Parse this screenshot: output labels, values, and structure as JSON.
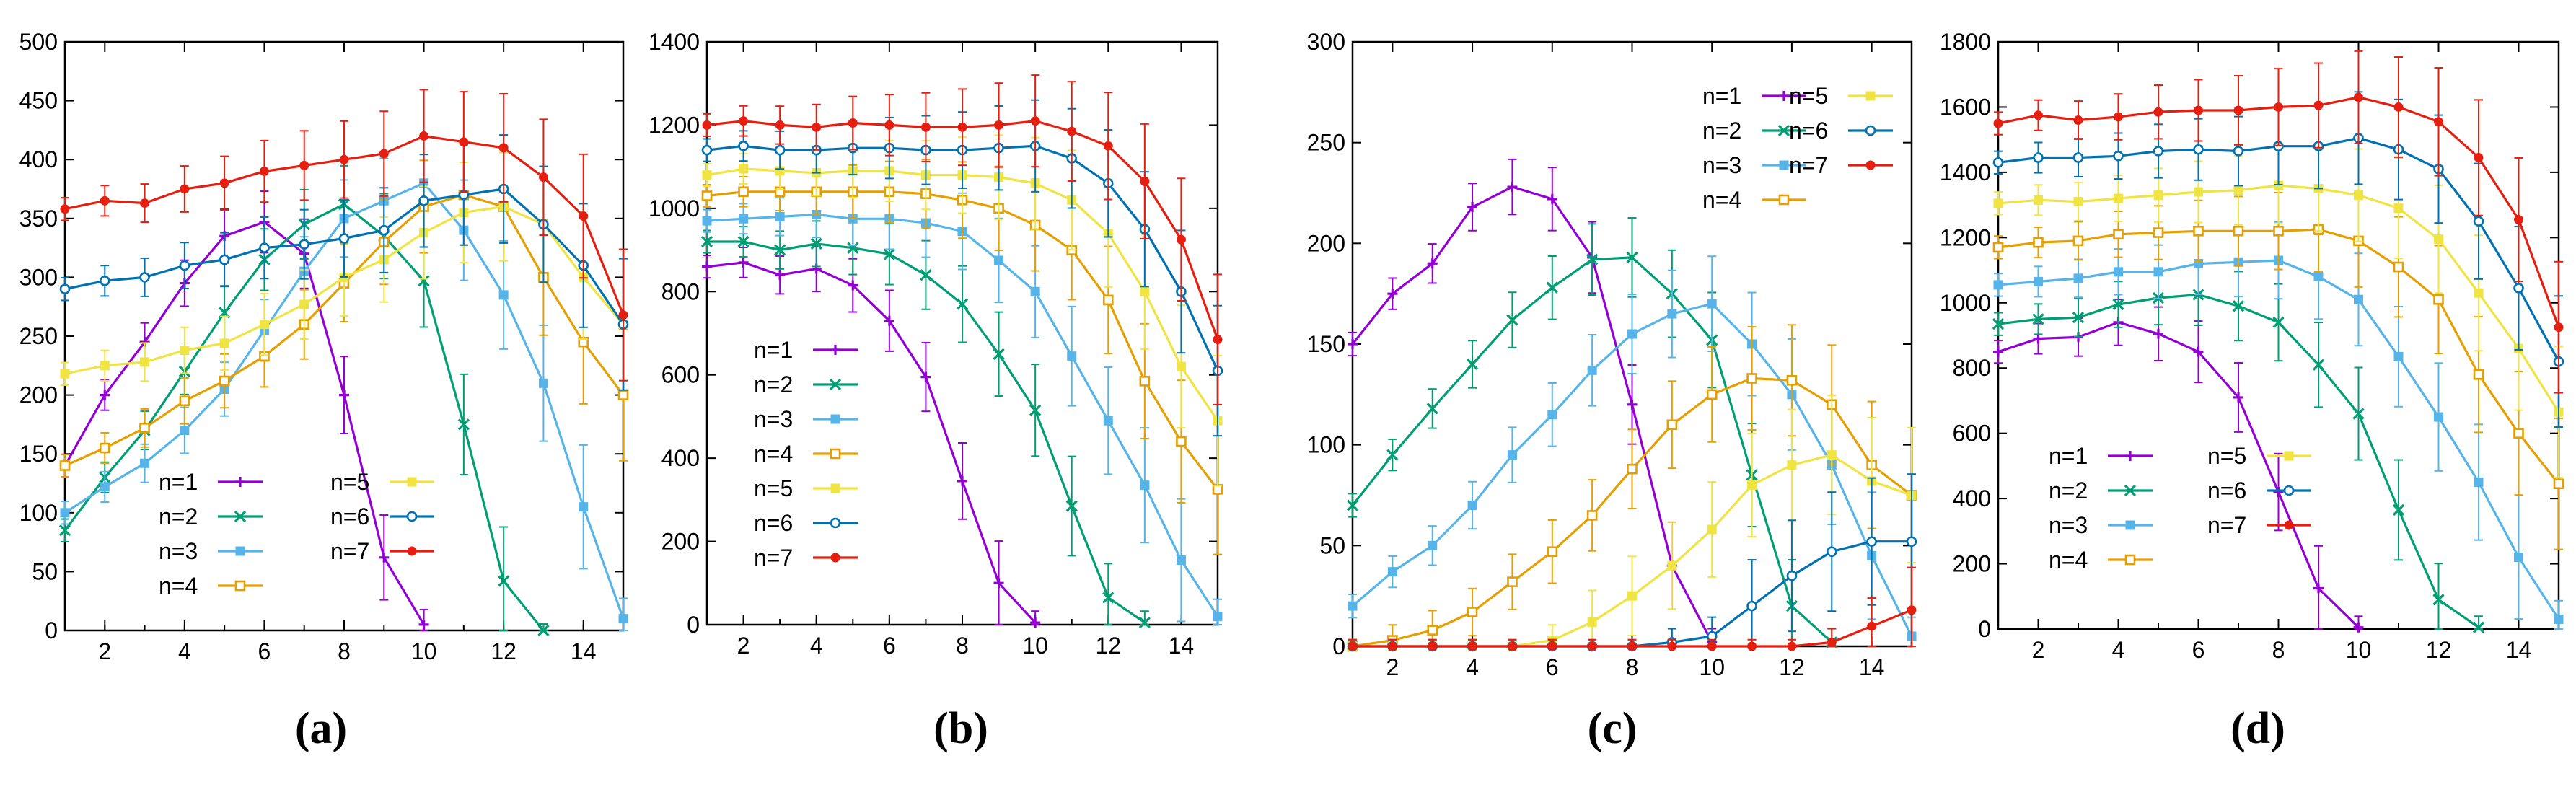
{
  "series_names": [
    "n=1",
    "n=2",
    "n=3",
    "n=4",
    "n=5",
    "n=6",
    "n=7"
  ],
  "colors": {
    "n1": "#9400d3",
    "n2": "#009e73",
    "n3": "#56b4e9",
    "n4": "#e69f00",
    "n5": "#f0e442",
    "n6": "#0072b2",
    "n7": "#e51e10"
  },
  "markers": [
    "plus",
    "cross",
    "square",
    "square-open",
    "square-filled",
    "circle-open",
    "circle-filled"
  ],
  "chart_data": [
    {
      "type": "line",
      "caption": "(a)",
      "x": [
        1,
        2,
        3,
        4,
        5,
        6,
        7,
        8,
        9,
        10,
        11,
        12,
        13,
        14,
        15
      ],
      "xticks": [
        2,
        4,
        6,
        8,
        10,
        12,
        14
      ],
      "xlim": [
        1,
        15
      ],
      "ylim": [
        0,
        500
      ],
      "yticks": [
        0,
        50,
        100,
        150,
        200,
        250,
        300,
        350,
        400,
        450,
        500
      ],
      "legend": "lower-left, two columns (n=1..4 | n=5..7)",
      "series": [
        {
          "name": "n=1",
          "values": [
            140,
            200,
            245,
            295,
            335,
            347,
            320,
            200,
            62,
            5,
            null,
            null,
            null,
            null,
            null
          ]
        },
        {
          "name": "n=2",
          "values": [
            85,
            130,
            170,
            220,
            270,
            315,
            345,
            362,
            335,
            297,
            175,
            42,
            0,
            null,
            null
          ]
        },
        {
          "name": "n=3",
          "values": [
            100,
            122,
            142,
            170,
            205,
            255,
            305,
            350,
            365,
            380,
            340,
            285,
            210,
            105,
            10
          ]
        },
        {
          "name": "n=4",
          "values": [
            140,
            155,
            172,
            195,
            212,
            233,
            260,
            295,
            330,
            360,
            370,
            360,
            300,
            245,
            200
          ]
        },
        {
          "name": "n=5",
          "values": [
            218,
            225,
            228,
            238,
            244,
            260,
            277,
            300,
            315,
            338,
            355,
            360,
            345,
            300,
            260
          ]
        },
        {
          "name": "n=6",
          "values": [
            290,
            297,
            300,
            310,
            315,
            325,
            328,
            333,
            340,
            365,
            370,
            375,
            345,
            310,
            260
          ]
        },
        {
          "name": "n=7",
          "values": [
            358,
            365,
            363,
            375,
            380,
            390,
            395,
            400,
            405,
            420,
            415,
            410,
            385,
            352,
            268
          ]
        }
      ]
    },
    {
      "type": "line",
      "caption": "(b)",
      "x": [
        1,
        2,
        3,
        4,
        5,
        6,
        7,
        8,
        9,
        10,
        11,
        12,
        13,
        14,
        15
      ],
      "xticks": [
        2,
        4,
        6,
        8,
        10,
        12,
        14
      ],
      "xlim": [
        1,
        15
      ],
      "ylim": [
        0,
        1400
      ],
      "yticks": [
        0,
        200,
        400,
        600,
        800,
        1000,
        1200,
        1400
      ],
      "legend": "lower-left, single column",
      "series": [
        {
          "name": "n=1",
          "values": [
            860,
            870,
            840,
            855,
            815,
            730,
            595,
            345,
            100,
            5,
            null,
            null,
            null,
            null,
            null
          ]
        },
        {
          "name": "n=2",
          "values": [
            920,
            920,
            900,
            915,
            905,
            890,
            840,
            770,
            650,
            515,
            285,
            65,
            5,
            null,
            null
          ]
        },
        {
          "name": "n=3",
          "values": [
            970,
            975,
            980,
            985,
            975,
            975,
            965,
            945,
            875,
            800,
            645,
            490,
            335,
            155,
            20
          ]
        },
        {
          "name": "n=4",
          "values": [
            1030,
            1040,
            1040,
            1040,
            1040,
            1040,
            1035,
            1020,
            1000,
            960,
            900,
            780,
            585,
            440,
            325
          ]
        },
        {
          "name": "n=5",
          "values": [
            1080,
            1095,
            1090,
            1085,
            1090,
            1090,
            1080,
            1080,
            1075,
            1060,
            1020,
            940,
            800,
            620,
            490
          ]
        },
        {
          "name": "n=6",
          "values": [
            1140,
            1150,
            1140,
            1140,
            1145,
            1145,
            1140,
            1140,
            1145,
            1150,
            1120,
            1060,
            950,
            800,
            610
          ]
        },
        {
          "name": "n=7",
          "values": [
            1200,
            1210,
            1200,
            1195,
            1205,
            1200,
            1195,
            1195,
            1200,
            1210,
            1185,
            1150,
            1065,
            925,
            685
          ]
        }
      ]
    },
    {
      "type": "line",
      "caption": "(c)",
      "x": [
        1,
        2,
        3,
        4,
        5,
        6,
        7,
        8,
        9,
        10,
        11,
        12,
        13,
        14,
        15
      ],
      "xticks": [
        2,
        4,
        6,
        8,
        10,
        12,
        14
      ],
      "xlim": [
        1,
        15
      ],
      "ylim": [
        0,
        300
      ],
      "yticks": [
        0,
        50,
        100,
        150,
        200,
        250,
        300
      ],
      "legend": "top-right, two columns (n=1..4 | n=5..7)",
      "series": [
        {
          "name": "n=1",
          "values": [
            150,
            175,
            190,
            218,
            228,
            222,
            193,
            120,
            40,
            2,
            null,
            null,
            null,
            null,
            null
          ]
        },
        {
          "name": "n=2",
          "values": [
            70,
            95,
            118,
            140,
            162,
            178,
            192,
            193,
            175,
            152,
            85,
            20,
            2,
            null,
            null
          ]
        },
        {
          "name": "n=3",
          "values": [
            20,
            37,
            50,
            70,
            95,
            115,
            137,
            155,
            165,
            170,
            150,
            125,
            90,
            45,
            5
          ]
        },
        {
          "name": "n=4",
          "values": [
            0,
            3,
            8,
            17,
            32,
            47,
            65,
            88,
            110,
            125,
            133,
            132,
            120,
            90,
            75
          ]
        },
        {
          "name": "n=5",
          "values": [
            0,
            0,
            0,
            0,
            0,
            3,
            12,
            25,
            40,
            58,
            80,
            90,
            95,
            82,
            75
          ]
        },
        {
          "name": "n=6",
          "values": [
            0,
            0,
            0,
            0,
            0,
            0,
            0,
            0,
            2,
            5,
            20,
            35,
            47,
            52,
            52
          ]
        },
        {
          "name": "n=7",
          "values": [
            0,
            0,
            0,
            0,
            0,
            0,
            0,
            0,
            0,
            0,
            0,
            0,
            2,
            10,
            18
          ]
        }
      ]
    },
    {
      "type": "line",
      "caption": "(d)",
      "x": [
        1,
        2,
        3,
        4,
        5,
        6,
        7,
        8,
        9,
        10,
        11,
        12,
        13,
        14,
        15
      ],
      "xticks": [
        2,
        4,
        6,
        8,
        10,
        12,
        14
      ],
      "xlim": [
        1,
        15
      ],
      "ylim": [
        0,
        1800
      ],
      "yticks": [
        0,
        200,
        400,
        600,
        800,
        1000,
        1200,
        1400,
        1600,
        1800
      ],
      "legend": "lower-left, two columns (n=1..4 | n=5..7)",
      "series": [
        {
          "name": "n=1",
          "values": [
            850,
            890,
            895,
            940,
            905,
            850,
            710,
            420,
            125,
            5,
            null,
            null,
            null,
            null,
            null
          ]
        },
        {
          "name": "n=2",
          "values": [
            935,
            950,
            955,
            995,
            1015,
            1025,
            990,
            940,
            810,
            660,
            365,
            90,
            5,
            null,
            null
          ]
        },
        {
          "name": "n=3",
          "values": [
            1055,
            1065,
            1075,
            1095,
            1095,
            1120,
            1125,
            1130,
            1080,
            1010,
            835,
            650,
            450,
            220,
            30
          ]
        },
        {
          "name": "n=4",
          "values": [
            1170,
            1185,
            1190,
            1210,
            1215,
            1220,
            1220,
            1220,
            1225,
            1190,
            1110,
            1010,
            780,
            600,
            445
          ]
        },
        {
          "name": "n=5",
          "values": [
            1305,
            1315,
            1310,
            1320,
            1330,
            1340,
            1345,
            1360,
            1350,
            1330,
            1290,
            1195,
            1030,
            860,
            665
          ]
        },
        {
          "name": "n=6",
          "values": [
            1430,
            1445,
            1445,
            1450,
            1465,
            1470,
            1465,
            1480,
            1480,
            1505,
            1470,
            1410,
            1250,
            1045,
            820
          ]
        },
        {
          "name": "n=7",
          "values": [
            1550,
            1575,
            1560,
            1570,
            1585,
            1590,
            1590,
            1600,
            1605,
            1630,
            1600,
            1555,
            1445,
            1255,
            925
          ]
        }
      ]
    }
  ]
}
